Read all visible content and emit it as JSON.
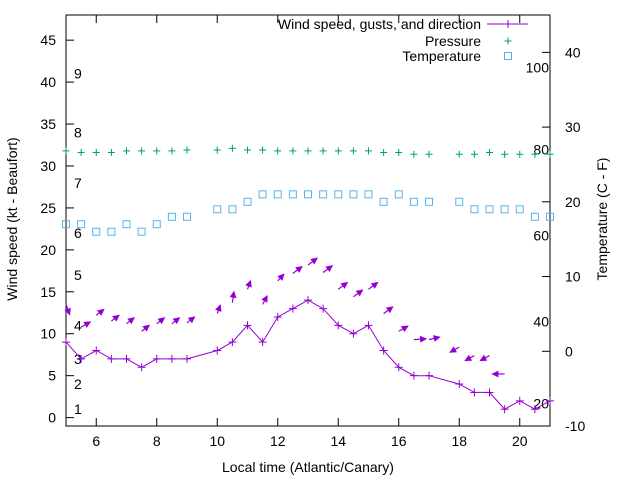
{
  "chart_data": {
    "type": "line",
    "xlabel": "Local time (Atlantic/Canary)",
    "ylabel_left": "Wind speed (kt - Beaufort)",
    "ylabel_right": "Temperature (C - F)",
    "xlim": [
      5,
      21
    ],
    "ylim_left": [
      -1,
      48
    ],
    "ylim_right": [
      -10,
      45
    ],
    "x_ticks": [
      6,
      8,
      10,
      12,
      14,
      16,
      18,
      20
    ],
    "y_ticks_left": [
      0,
      5,
      10,
      15,
      20,
      25,
      30,
      35,
      40,
      45
    ],
    "y_ticks_right": [
      -10,
      0,
      10,
      20,
      30,
      40
    ],
    "beaufort_labels": [
      {
        "label": "1",
        "y": 1
      },
      {
        "label": "2",
        "y": 4
      },
      {
        "label": "3",
        "y": 7
      },
      {
        "label": "4",
        "y": 11
      },
      {
        "label": "5",
        "y": 17
      },
      {
        "label": "6",
        "y": 22
      },
      {
        "label": "7",
        "y": 28
      },
      {
        "label": "8",
        "y": 34
      },
      {
        "label": "9",
        "y": 41
      }
    ],
    "fahrenheit_labels": [
      {
        "label": "20",
        "y": -7
      },
      {
        "label": "40",
        "y": 4
      },
      {
        "label": "60",
        "y": 15.5
      },
      {
        "label": "80",
        "y": 27
      },
      {
        "label": "100",
        "y": 38
      }
    ],
    "legend_position": "top-right",
    "series": [
      {
        "name": "Wind speed, gusts, and direction",
        "color": "#9400d3",
        "style": "line+points",
        "x": [
          5,
          5.5,
          6,
          6.5,
          7,
          7.5,
          8,
          8.5,
          9,
          10,
          10.5,
          11,
          11.5,
          12,
          12.5,
          13,
          13.5,
          14,
          14.5,
          15,
          15.5,
          16,
          16.5,
          17,
          18,
          18.5,
          19,
          19.5,
          20,
          20.5,
          21
        ],
        "y": [
          9,
          7,
          8,
          7,
          7,
          6,
          7,
          7,
          7,
          8,
          9,
          11,
          9,
          12,
          13,
          14,
          13,
          11,
          10,
          11,
          8,
          6,
          5,
          5,
          4,
          3,
          3,
          1,
          2,
          1,
          2
        ]
      },
      {
        "name": "Pressure",
        "color": "#009e73",
        "style": "points-plus",
        "x": [
          5,
          5.5,
          6,
          6.5,
          7,
          7.5,
          8,
          8.5,
          9,
          10,
          10.5,
          11,
          11.5,
          12,
          12.5,
          13,
          13.5,
          14,
          14.5,
          15,
          15.5,
          16,
          16.5,
          17,
          18,
          18.5,
          19,
          19.5,
          20,
          20.5,
          21
        ],
        "y": [
          31.8,
          31.6,
          31.6,
          31.6,
          31.8,
          31.8,
          31.8,
          31.8,
          31.9,
          31.9,
          32.1,
          31.9,
          31.9,
          31.8,
          31.8,
          31.8,
          31.8,
          31.8,
          31.8,
          31.8,
          31.6,
          31.6,
          31.4,
          31.4,
          31.4,
          31.4,
          31.6,
          31.4,
          31.4,
          31.4,
          31.4
        ]
      },
      {
        "name": "Temperature",
        "color": "#56b4e9",
        "style": "points-square",
        "axis": "right",
        "x": [
          5,
          5.5,
          6,
          6.5,
          7,
          7.5,
          8,
          8.5,
          9,
          10,
          10.5,
          11,
          11.5,
          12,
          12.5,
          13,
          13.5,
          14,
          14.5,
          15,
          15.5,
          16,
          16.5,
          17,
          18,
          18.5,
          19,
          19.5,
          20,
          20.5,
          21
        ],
        "y": [
          17,
          17,
          16,
          16,
          17,
          16,
          17,
          18,
          18,
          19,
          19,
          20,
          21,
          21,
          21,
          21,
          21,
          21,
          21,
          21,
          20,
          21,
          20,
          20,
          20,
          19,
          19,
          19,
          19,
          18,
          18
        ]
      }
    ],
    "wind_arrows": [
      {
        "x": 5,
        "y": 13.5,
        "dx": 0.12,
        "dy": -1.2
      },
      {
        "x": 5.5,
        "y": 10.8,
        "dx": 0.3,
        "dy": 0.6
      },
      {
        "x": 6,
        "y": 12.2,
        "dx": 0.25,
        "dy": 0.7
      },
      {
        "x": 6.5,
        "y": 11.5,
        "dx": 0.25,
        "dy": 0.7
      },
      {
        "x": 7,
        "y": 11.2,
        "dx": 0.25,
        "dy": 0.7
      },
      {
        "x": 7.5,
        "y": 10.3,
        "dx": 0.25,
        "dy": 0.7
      },
      {
        "x": 8,
        "y": 11.2,
        "dx": 0.25,
        "dy": 0.7
      },
      {
        "x": 8.5,
        "y": 11.2,
        "dx": 0.25,
        "dy": 0.7
      },
      {
        "x": 9,
        "y": 11.3,
        "dx": 0.25,
        "dy": 0.7
      },
      {
        "x": 10,
        "y": 12.4,
        "dx": 0.1,
        "dy": 1.0
      },
      {
        "x": 10.5,
        "y": 13.7,
        "dx": 0.05,
        "dy": 1.3
      },
      {
        "x": 11,
        "y": 15.3,
        "dx": 0.1,
        "dy": 1.0
      },
      {
        "x": 11.5,
        "y": 13.5,
        "dx": 0.15,
        "dy": 1.0
      },
      {
        "x": 12,
        "y": 16.3,
        "dx": 0.2,
        "dy": 0.8
      },
      {
        "x": 12.5,
        "y": 17.2,
        "dx": 0.3,
        "dy": 0.8
      },
      {
        "x": 13,
        "y": 18.2,
        "dx": 0.3,
        "dy": 0.8
      },
      {
        "x": 13.5,
        "y": 17.3,
        "dx": 0.3,
        "dy": 0.8
      },
      {
        "x": 14,
        "y": 15.3,
        "dx": 0.3,
        "dy": 0.8
      },
      {
        "x": 14.5,
        "y": 14.4,
        "dx": 0.3,
        "dy": 0.8
      },
      {
        "x": 15,
        "y": 15.3,
        "dx": 0.3,
        "dy": 0.8
      },
      {
        "x": 15.5,
        "y": 12.4,
        "dx": 0.3,
        "dy": 0.8
      },
      {
        "x": 16,
        "y": 10.3,
        "dx": 0.3,
        "dy": 0.6
      },
      {
        "x": 16.5,
        "y": 9.3,
        "dx": 0.4,
        "dy": 0.1
      },
      {
        "x": 17,
        "y": 9.3,
        "dx": 0.35,
        "dy": 0.3
      },
      {
        "x": 18,
        "y": 8.4,
        "dx": -0.3,
        "dy": -0.6
      },
      {
        "x": 18.5,
        "y": 7.4,
        "dx": -0.3,
        "dy": -0.6
      },
      {
        "x": 19,
        "y": 7.4,
        "dx": -0.3,
        "dy": -0.6
      },
      {
        "x": 19.5,
        "y": 5.2,
        "dx": -0.4,
        "dy": 0.0
      }
    ]
  }
}
